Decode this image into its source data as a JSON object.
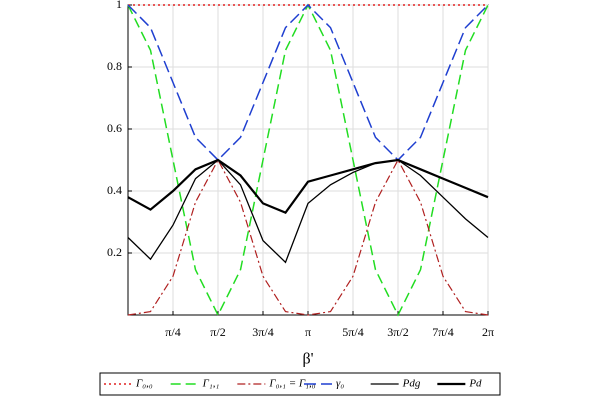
{
  "chart_data": {
    "type": "line",
    "x_label": "β'",
    "x": [
      0,
      0.3927,
      0.7854,
      1.1781,
      1.5708,
      1.9635,
      2.3562,
      2.7489,
      3.1416,
      3.5343,
      3.927,
      4.3197,
      4.7124,
      5.1051,
      5.4978,
      5.8905,
      6.2832
    ],
    "xlim": [
      0,
      6.2832
    ],
    "xticks": [
      {
        "value": 0.7854,
        "label": "π/4"
      },
      {
        "value": 1.5708,
        "label": "π/2"
      },
      {
        "value": 2.3562,
        "label": "3π/4"
      },
      {
        "value": 3.1416,
        "label": "π"
      },
      {
        "value": 3.927,
        "label": "5π/4"
      },
      {
        "value": 4.7124,
        "label": "3π/2"
      },
      {
        "value": 5.4978,
        "label": "7π/4"
      },
      {
        "value": 6.2832,
        "label": "2π"
      }
    ],
    "ylim": [
      0,
      1
    ],
    "yticks": [
      0.2,
      0.4,
      0.6,
      0.8,
      1
    ],
    "grid": true,
    "legend": "bottom",
    "series": [
      {
        "name": "Γ₀,₀",
        "color": "#e02020",
        "dash": "2 3",
        "width": 1.5,
        "values": [
          1,
          1,
          1,
          1,
          1,
          1,
          1,
          1,
          1,
          1,
          1,
          1,
          1,
          1,
          1,
          1,
          1
        ]
      },
      {
        "name": "Γ₁,₁",
        "color": "#22dd22",
        "dash": "10 5",
        "width": 1.5,
        "values": [
          1,
          0.854,
          0.5,
          0.146,
          0,
          0.146,
          0.5,
          0.854,
          1,
          0.854,
          0.5,
          0.146,
          0,
          0.146,
          0.5,
          0.854,
          1
        ]
      },
      {
        "name": "Γ₀,₁ = Γ₁,₀",
        "color": "#b02020",
        "dash": "8 3 2 3",
        "width": 1.2,
        "values": [
          0,
          0.011,
          0.125,
          0.364,
          0.5,
          0.364,
          0.125,
          0.011,
          0,
          0.011,
          0.125,
          0.364,
          0.5,
          0.364,
          0.125,
          0.011,
          0
        ]
      },
      {
        "name": "γ₀",
        "color": "#1f3fd0",
        "dash": "12 5",
        "width": 1.5,
        "values": [
          1,
          0.927,
          0.75,
          0.573,
          0.5,
          0.573,
          0.75,
          0.927,
          1,
          0.927,
          0.75,
          0.573,
          0.5,
          0.573,
          0.75,
          0.927,
          1
        ]
      },
      {
        "name": "Pdg",
        "color": "#000000",
        "dash": "",
        "width": 1.3,
        "values": [
          0.25,
          0.18,
          0.29,
          0.44,
          0.5,
          0.42,
          0.24,
          0.17,
          0.36,
          0.42,
          0.46,
          0.49,
          0.5,
          0.45,
          0.38,
          0.31,
          0.25
        ]
      },
      {
        "name": "Pd",
        "color": "#000000",
        "dash": "",
        "width": 2.2,
        "values": [
          0.38,
          0.34,
          0.4,
          0.47,
          0.5,
          0.45,
          0.36,
          0.33,
          0.43,
          0.45,
          0.47,
          0.49,
          0.5,
          0.47,
          0.44,
          0.41,
          0.38
        ]
      }
    ]
  }
}
